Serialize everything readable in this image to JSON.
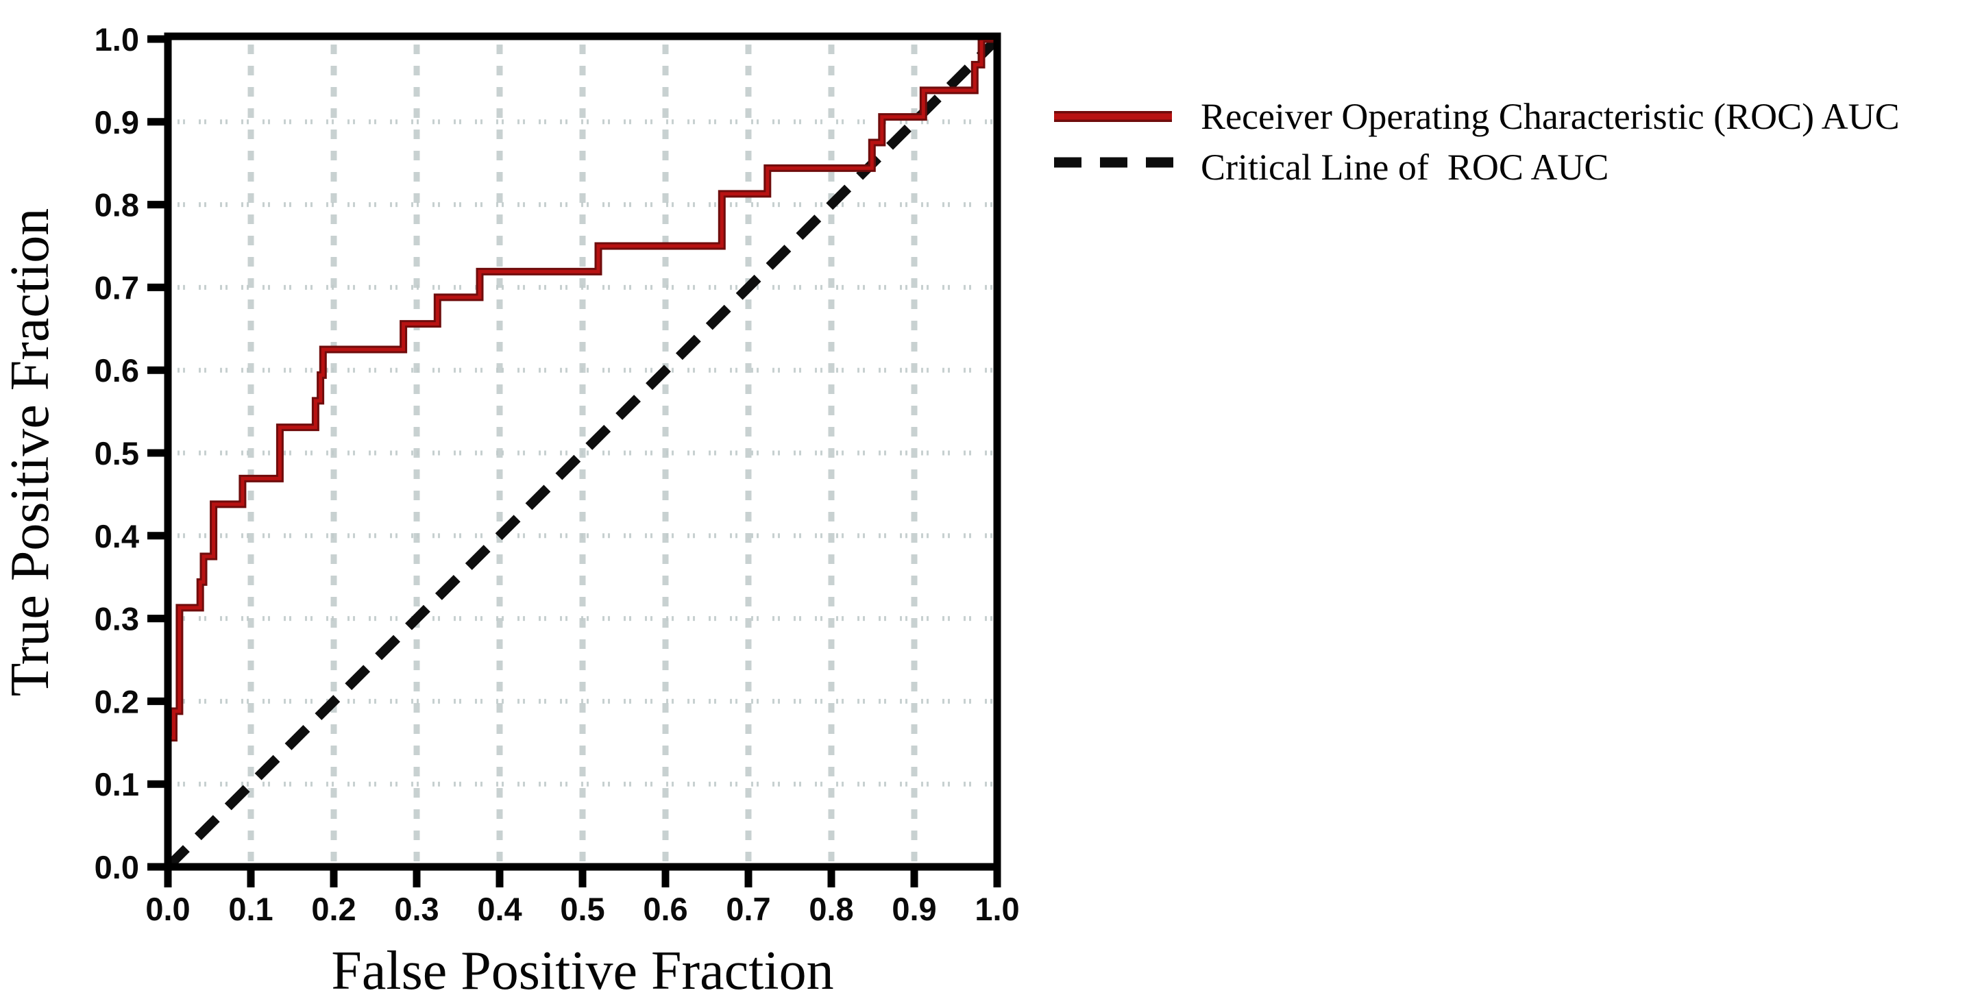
{
  "figure": {
    "background": "#ffffff",
    "x_axis": {
      "title": "False Positive Fraction",
      "tick_labels": [
        "0.0",
        "0.1",
        "0.2",
        "0.3",
        "0.4",
        "0.5",
        "0.6",
        "0.7",
        "0.8",
        "0.9",
        "1.0"
      ],
      "range": [
        0,
        1
      ]
    },
    "y_axis": {
      "title": "True Positive Fraction",
      "tick_labels": [
        "0.0",
        "0.1",
        "0.2",
        "0.3",
        "0.4",
        "0.5",
        "0.6",
        "0.7",
        "0.8",
        "0.9",
        "1.0"
      ],
      "range": [
        0,
        1
      ]
    },
    "legend": {
      "items": [
        {
          "label": "Receiver Operating Characteristic (ROC) AUC",
          "style": "solid",
          "color": "#b30d0d"
        },
        {
          "label": "Critical Line of  ROC AUC",
          "style": "dashed",
          "color": "#0d0d0d"
        }
      ]
    },
    "colors": {
      "axis": "#000000",
      "grid_vertical": "#c8d1d1",
      "grid_horizontal": "#c2cccc",
      "roc_outer": "#6f0c0c",
      "roc_inner": "#b81212",
      "critical_line": "#0e0e0e"
    }
  },
  "chart_data": {
    "type": "line",
    "subtype": "roc-step",
    "title": "",
    "xlabel": "False Positive Fraction",
    "ylabel": "True Positive Fraction",
    "xlim": [
      0,
      1
    ],
    "ylim": [
      0,
      1
    ],
    "grid": true,
    "legend_position": "outside-upper-right",
    "series": [
      {
        "name": "Receiver Operating Characteristic (ROC) AUC",
        "style": "step-solid",
        "color": "#b30d0d",
        "points": [
          [
            0,
            0
          ],
          [
            0,
            0.156
          ],
          [
            0.007,
            0.156
          ],
          [
            0.007,
            0.188
          ],
          [
            0.014,
            0.188
          ],
          [
            0.014,
            0.313
          ],
          [
            0.039,
            0.313
          ],
          [
            0.039,
            0.344
          ],
          [
            0.043,
            0.344
          ],
          [
            0.043,
            0.375
          ],
          [
            0.055,
            0.375
          ],
          [
            0.055,
            0.438
          ],
          [
            0.09,
            0.438
          ],
          [
            0.09,
            0.469
          ],
          [
            0.135,
            0.469
          ],
          [
            0.135,
            0.531
          ],
          [
            0.178,
            0.531
          ],
          [
            0.178,
            0.563
          ],
          [
            0.184,
            0.563
          ],
          [
            0.184,
            0.594
          ],
          [
            0.187,
            0.594
          ],
          [
            0.187,
            0.625
          ],
          [
            0.284,
            0.625
          ],
          [
            0.284,
            0.656
          ],
          [
            0.325,
            0.656
          ],
          [
            0.325,
            0.688
          ],
          [
            0.376,
            0.688
          ],
          [
            0.376,
            0.719
          ],
          [
            0.519,
            0.719
          ],
          [
            0.519,
            0.75
          ],
          [
            0.668,
            0.75
          ],
          [
            0.668,
            0.813
          ],
          [
            0.723,
            0.813
          ],
          [
            0.723,
            0.844
          ],
          [
            0.849,
            0.844
          ],
          [
            0.849,
            0.875
          ],
          [
            0.861,
            0.875
          ],
          [
            0.861,
            0.906
          ],
          [
            0.911,
            0.906
          ],
          [
            0.911,
            0.938
          ],
          [
            0.973,
            0.938
          ],
          [
            0.973,
            0.969
          ],
          [
            0.981,
            0.969
          ],
          [
            0.981,
            1
          ],
          [
            1,
            1
          ]
        ]
      },
      {
        "name": "Critical Line of  ROC AUC",
        "style": "dashed-diagonal",
        "color": "#0e0e0e",
        "points": [
          [
            0,
            0
          ],
          [
            1,
            1
          ]
        ]
      }
    ]
  }
}
